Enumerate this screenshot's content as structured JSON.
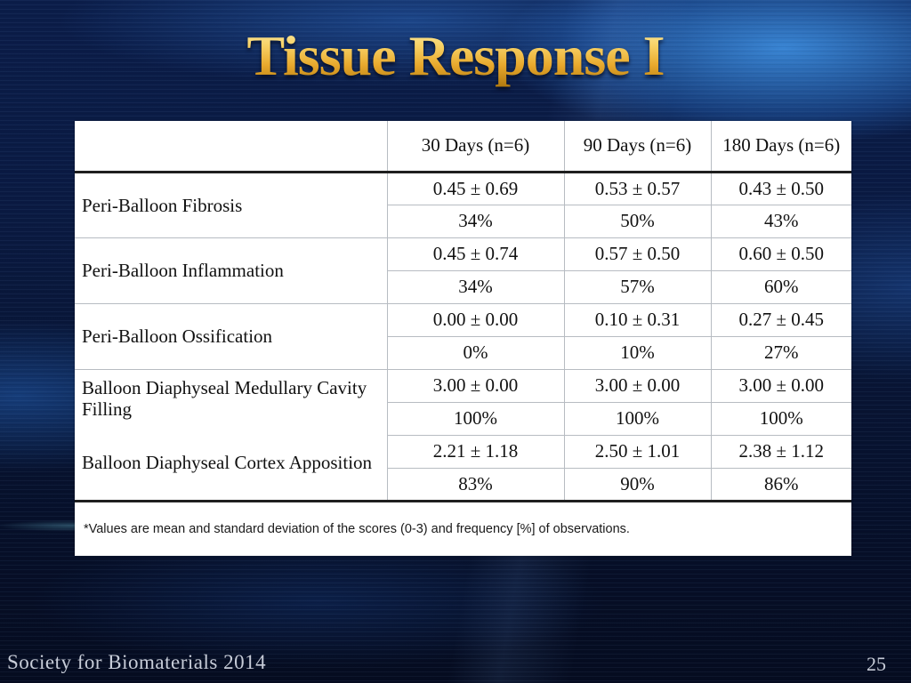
{
  "slide": {
    "title": "Tissue Response I",
    "footer": "Society for Biomaterials 2014",
    "page_number": "25"
  },
  "table": {
    "headers": [
      "30 Days (n=6)",
      "90 Days (n=6)",
      "180 Days (n=6)"
    ],
    "metrics": [
      {
        "label": "Peri-Balloon Fibrosis",
        "mean_sd": [
          "0.45 ± 0.69",
          "0.53 ± 0.57",
          "0.43 ± 0.50"
        ],
        "frequency": [
          "34%",
          "50%",
          "43%"
        ]
      },
      {
        "label": "Peri-Balloon Inflammation",
        "mean_sd": [
          "0.45 ± 0.74",
          "0.57 ± 0.50",
          "0.60 ± 0.50"
        ],
        "frequency": [
          "34%",
          "57%",
          "60%"
        ]
      },
      {
        "label": "Peri-Balloon Ossification",
        "mean_sd": [
          "0.00 ± 0.00",
          "0.10 ± 0.31",
          "0.27 ± 0.45"
        ],
        "frequency": [
          "0%",
          "10%",
          "27%"
        ]
      },
      {
        "label": "Balloon Diaphyseal Medullary Cavity Filling",
        "mean_sd": [
          "3.00 ± 0.00",
          "3.00 ± 0.00",
          "3.00 ± 0.00"
        ],
        "frequency": [
          "100%",
          "100%",
          "100%"
        ]
      },
      {
        "label": "Balloon Diaphyseal Cortex Apposition",
        "mean_sd": [
          "2.21 ± 1.18",
          "2.50 ± 1.01",
          "2.38 ± 1.12"
        ],
        "frequency": [
          "83%",
          "90%",
          "86%"
        ]
      }
    ],
    "footnote": "*Values are mean and standard deviation of the scores (0-3) and frequency [%] of observations."
  },
  "colors": {
    "title_gold": "#edbd45",
    "background_navy": "#0a1a42",
    "background_bright_blue": "#2176c4",
    "table_background": "#ffffff",
    "table_border_light": "#b7bcc2",
    "table_border_heavy": "#1f1f1f",
    "footer_text": "#c7ccd8"
  }
}
